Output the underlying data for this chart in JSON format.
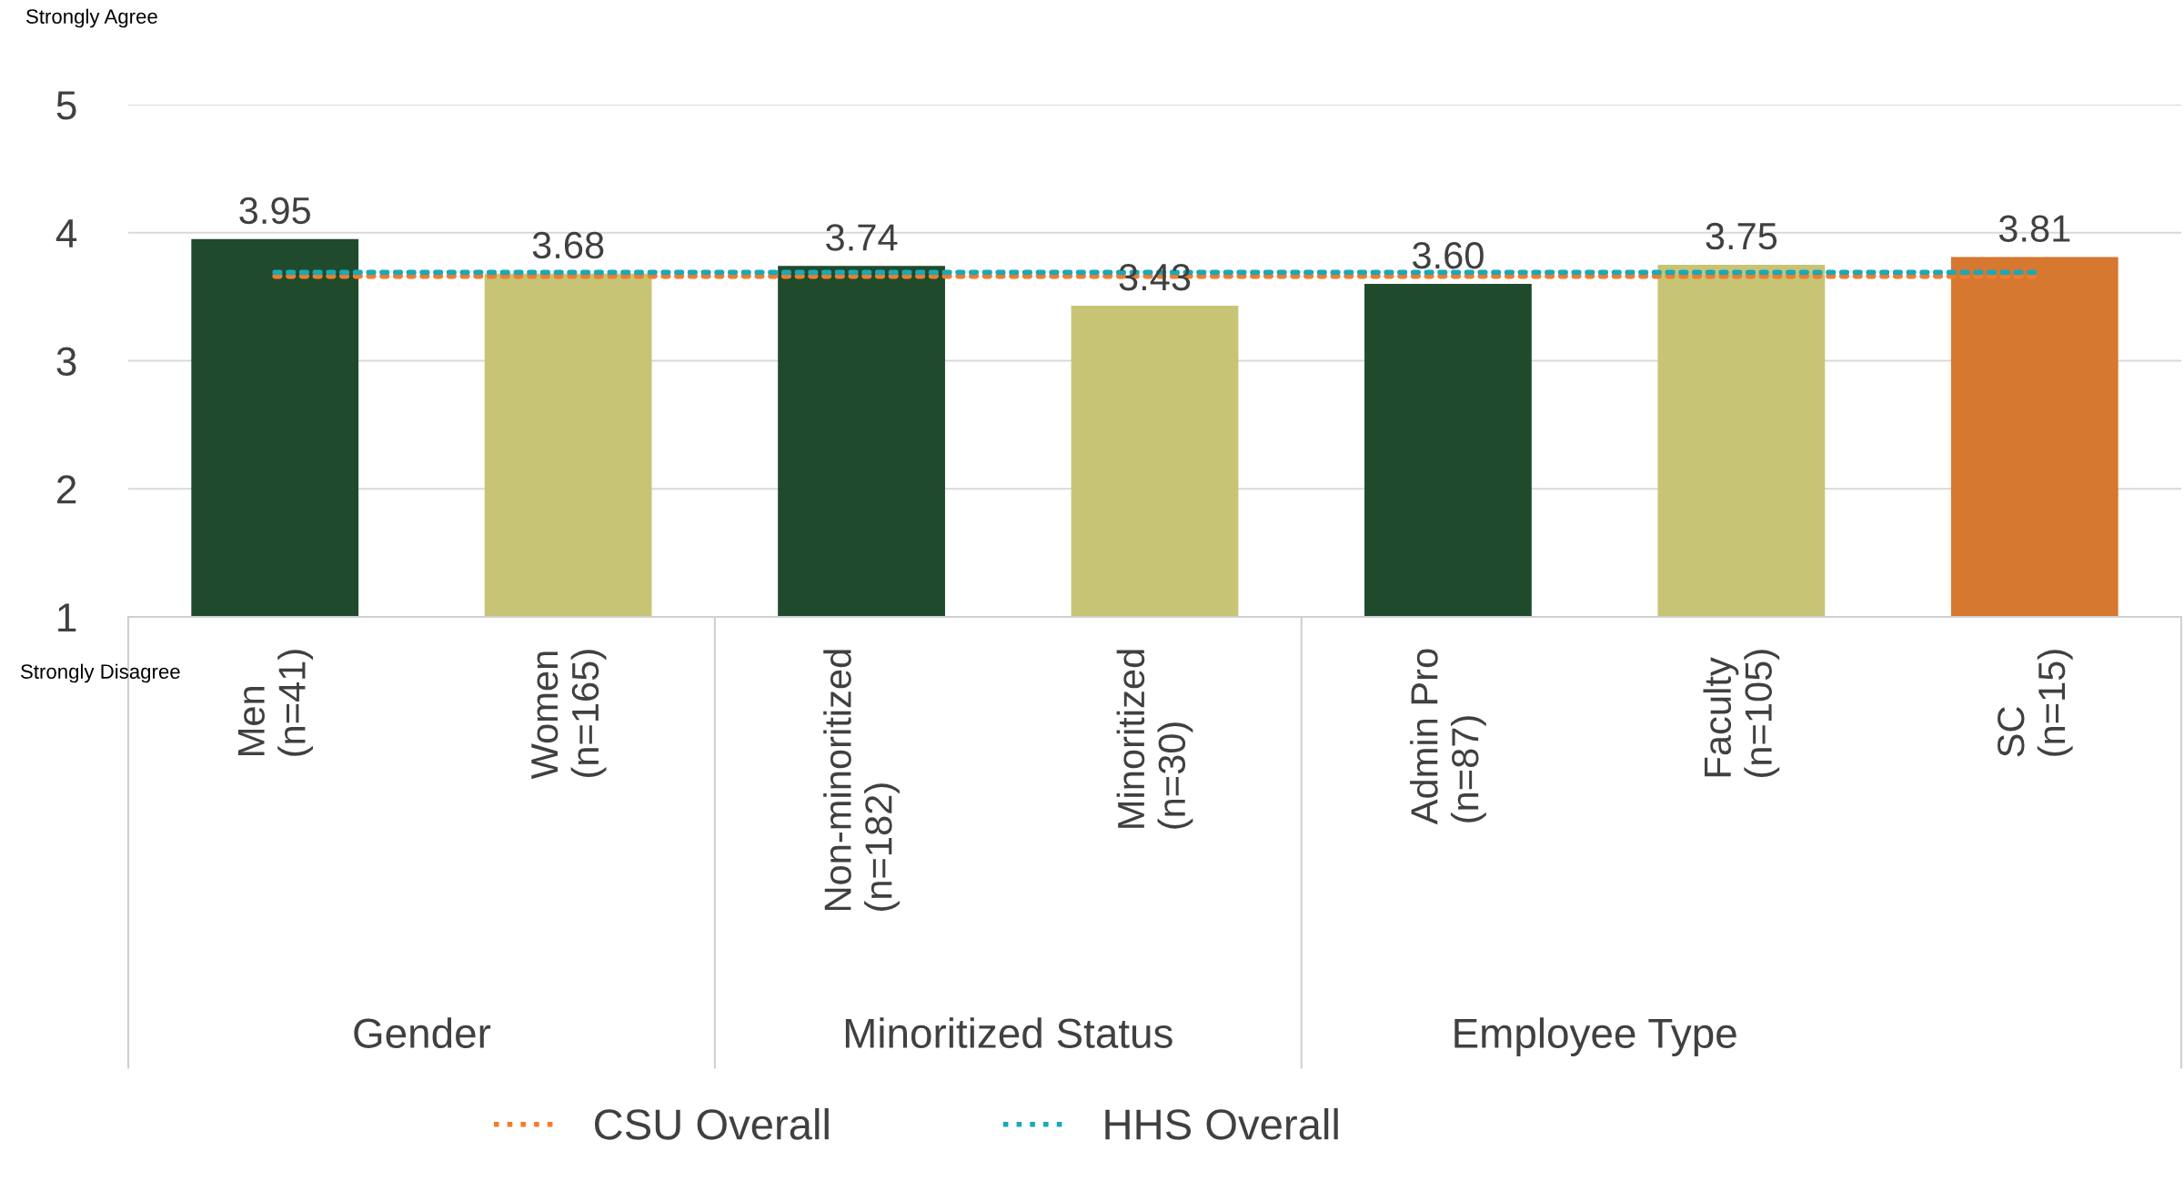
{
  "chart_data": {
    "type": "bar",
    "categories": [
      "Men\n(n=41)",
      "Women\n(n=165)",
      "Non-minoritized\n(n=182)",
      "Minoritized\n(n=30)",
      "Admin Pro\n(n=87)",
      "Faculty\n(n=105)",
      "SC\n(n=15)"
    ],
    "series": [
      {
        "colors": [
          "#1f4b2c",
          "#c8c476",
          "#1f4b2c",
          "#c8c476",
          "#1f4b2c",
          "#c8c476",
          "#d6782f"
        ],
        "values": [
          3.95,
          3.68,
          3.74,
          3.43,
          3.6,
          3.75,
          3.81
        ],
        "value_labels": [
          "3.95",
          "3.68",
          "3.74",
          "3.43",
          "3.60",
          "3.75",
          "3.81"
        ]
      },
      {
        "type": "line",
        "name": "CSU Overall",
        "color": "#f47c2a",
        "line_style": "dotted",
        "values": [
          3.66,
          3.66,
          3.66,
          3.66,
          3.66,
          3.66,
          3.66
        ]
      },
      {
        "type": "line",
        "name": "HHS Overall",
        "color": "#1ba8b8",
        "line_style": "dotted",
        "values": [
          3.69,
          3.69,
          3.69,
          3.69,
          3.69,
          3.69,
          3.69
        ]
      }
    ],
    "ylim": [
      1,
      5
    ],
    "yticks": [
      1,
      2,
      3,
      4,
      5
    ],
    "grid": "y",
    "legend": "bottom",
    "annotations": [
      "Strongly Agree",
      "Strongly Disagree",
      "Gender",
      "Minoritized Status",
      "Employee Type"
    ]
  }
}
